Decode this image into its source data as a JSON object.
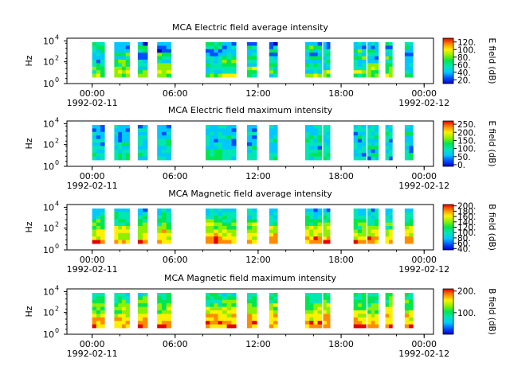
{
  "chart_data": [
    {
      "type": "heatmap",
      "title": "MCA  Electric field average intensity",
      "ylabel": "Hz",
      "colorbar_label": "E field (dB)",
      "colorbar_ticks": [
        "20.",
        "40.",
        "60.",
        "80.",
        "100.",
        "120."
      ],
      "colorbar_range": [
        10,
        130
      ],
      "y_ticks": [
        "10",
        "10",
        "10"
      ],
      "y_tick_exponents": [
        "0",
        "2",
        "4"
      ],
      "x_ticks": [
        "00:00",
        "06:00",
        "12:00",
        "18:00",
        "00:00"
      ],
      "x_dates": [
        "1992-02-11",
        "1992-02-12"
      ],
      "data_blocks_hours": [
        [
          0.0,
          0.9
        ],
        [
          1.6,
          2.7
        ],
        [
          3.3,
          4.0
        ],
        [
          4.7,
          5.7
        ],
        [
          8.2,
          9.4
        ],
        [
          9.4,
          10.4
        ],
        [
          11.2,
          11.9
        ],
        [
          12.8,
          13.4
        ],
        [
          15.4,
          16.6
        ],
        [
          16.7,
          17.2
        ],
        [
          18.9,
          19.8
        ],
        [
          19.9,
          20.7
        ],
        [
          21.2,
          21.7
        ],
        [
          22.6,
          23.2
        ]
      ]
    },
    {
      "type": "heatmap",
      "title": "MCA  Electric field maximum intensity",
      "ylabel": "Hz",
      "colorbar_label": "E field (dB)",
      "colorbar_ticks": [
        "0.",
        "50.",
        "100.",
        "150.",
        "200.",
        "250."
      ],
      "colorbar_range": [
        -10,
        270
      ],
      "y_ticks": [
        "10",
        "10",
        "10"
      ],
      "y_tick_exponents": [
        "0",
        "2",
        "4"
      ],
      "x_ticks": [
        "00:00",
        "06:00",
        "12:00",
        "18:00",
        "00:00"
      ],
      "x_dates": [
        "1992-02-11",
        "1992-02-12"
      ],
      "data_blocks_hours": [
        [
          0.0,
          0.9
        ],
        [
          1.6,
          2.7
        ],
        [
          3.3,
          4.0
        ],
        [
          4.7,
          5.7
        ],
        [
          8.2,
          9.4
        ],
        [
          9.4,
          10.4
        ],
        [
          11.2,
          11.9
        ],
        [
          12.8,
          13.4
        ],
        [
          15.4,
          16.6
        ],
        [
          16.7,
          17.2
        ],
        [
          18.9,
          19.8
        ],
        [
          19.9,
          20.7
        ],
        [
          21.2,
          21.7
        ],
        [
          22.6,
          23.2
        ]
      ]
    },
    {
      "type": "heatmap",
      "title": "MCA  Magnetic field average intensity",
      "ylabel": "Hz",
      "colorbar_label": "B field (dB)",
      "colorbar_ticks": [
        "40.",
        "60.",
        "80.",
        "100.",
        "120.",
        "140.",
        "160.",
        "180.",
        "200."
      ],
      "colorbar_range": [
        35,
        205
      ],
      "y_ticks": [
        "10",
        "10",
        "10"
      ],
      "y_tick_exponents": [
        "0",
        "2",
        "4"
      ],
      "x_ticks": [
        "00:00",
        "06:00",
        "12:00",
        "18:00",
        "00:00"
      ],
      "x_dates": [
        "1992-02-11",
        "1992-02-12"
      ],
      "data_blocks_hours": [
        [
          0.0,
          0.9
        ],
        [
          1.6,
          2.7
        ],
        [
          3.3,
          4.0
        ],
        [
          4.7,
          5.7
        ],
        [
          8.2,
          9.4
        ],
        [
          9.4,
          10.4
        ],
        [
          11.2,
          11.9
        ],
        [
          12.8,
          13.4
        ],
        [
          15.4,
          16.6
        ],
        [
          16.7,
          17.2
        ],
        [
          18.9,
          19.8
        ],
        [
          19.9,
          20.7
        ],
        [
          21.2,
          21.7
        ],
        [
          22.6,
          23.2
        ]
      ]
    },
    {
      "type": "heatmap",
      "title": "MCA  Magnetic field maximum intensity",
      "ylabel": "Hz",
      "colorbar_label": "B field (dB)",
      "colorbar_ticks": [
        "100.",
        "200."
      ],
      "colorbar_range": [
        0,
        210
      ],
      "y_ticks": [
        "10",
        "10",
        "10"
      ],
      "y_tick_exponents": [
        "0",
        "2",
        "4"
      ],
      "x_ticks": [
        "00:00",
        "06:00",
        "12:00",
        "18:00",
        "00:00"
      ],
      "x_dates": [
        "1992-02-11",
        "1992-02-12"
      ],
      "data_blocks_hours": [
        [
          0.0,
          0.9
        ],
        [
          1.6,
          2.7
        ],
        [
          3.3,
          4.0
        ],
        [
          4.7,
          5.7
        ],
        [
          8.2,
          9.4
        ],
        [
          9.4,
          10.4
        ],
        [
          11.2,
          11.9
        ],
        [
          12.8,
          13.4
        ],
        [
          15.4,
          16.6
        ],
        [
          16.7,
          17.2
        ],
        [
          18.9,
          19.8
        ],
        [
          19.9,
          20.7
        ],
        [
          21.2,
          21.7
        ],
        [
          22.6,
          23.2
        ]
      ]
    }
  ]
}
